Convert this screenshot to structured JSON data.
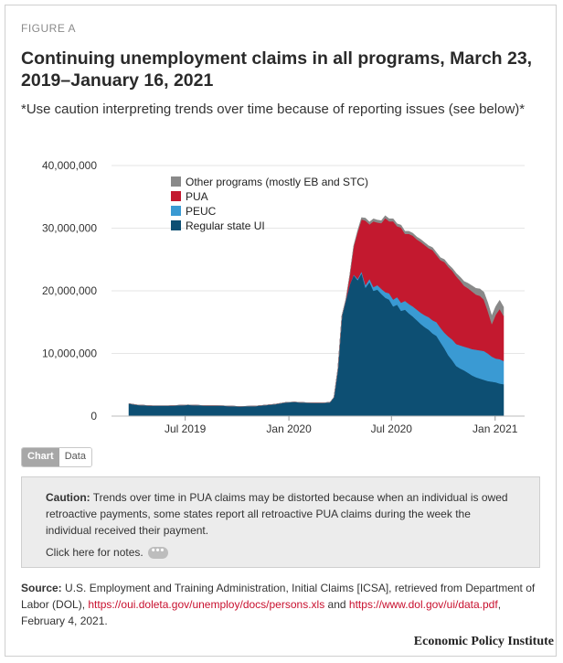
{
  "figure_label": "FIGURE A",
  "title": "Continuing unemployment claims in all programs, March 23, 2019–January 16, 2021",
  "subtitle": "*Use caution interpreting trends over time because of reporting issues (see below)*",
  "colors": {
    "regular": "#0d4f73",
    "peuc": "#3a9ad3",
    "pua": "#c3192f",
    "other": "#898989",
    "grid": "#e6e6e6"
  },
  "chart_data": {
    "type": "area",
    "stacked": true,
    "y_ticks": [
      "0",
      "10,000,000",
      "20,000,000",
      "30,000,000",
      "40,000,000"
    ],
    "ylim": [
      0,
      40000000
    ],
    "x_tick_labels": [
      "Jul 2019",
      "Jan 2020",
      "Jul 2020",
      "Jan 2021"
    ],
    "x_tick_dates": [
      "2019-07-01",
      "2020-01-01",
      "2020-07-01",
      "2021-01-01"
    ],
    "x_range": [
      "2019-03-23",
      "2021-01-16"
    ],
    "grid": true,
    "legend_placement": "top-left",
    "x": [
      "2019-03-23",
      "2019-04-06",
      "2019-05-04",
      "2019-06-01",
      "2019-07-06",
      "2019-08-03",
      "2019-09-07",
      "2019-10-05",
      "2019-11-02",
      "2019-12-07",
      "2019-12-28",
      "2020-01-11",
      "2020-02-01",
      "2020-02-29",
      "2020-03-14",
      "2020-03-21",
      "2020-03-28",
      "2020-04-04",
      "2020-04-11",
      "2020-04-18",
      "2020-04-25",
      "2020-05-02",
      "2020-05-09",
      "2020-05-16",
      "2020-05-23",
      "2020-05-30",
      "2020-06-06",
      "2020-06-13",
      "2020-06-20",
      "2020-06-27",
      "2020-07-04",
      "2020-07-11",
      "2020-07-18",
      "2020-07-25",
      "2020-08-01",
      "2020-08-08",
      "2020-08-15",
      "2020-08-22",
      "2020-08-29",
      "2020-09-05",
      "2020-09-12",
      "2020-09-19",
      "2020-09-26",
      "2020-10-03",
      "2020-10-10",
      "2020-10-17",
      "2020-10-24",
      "2020-10-31",
      "2020-11-07",
      "2020-11-14",
      "2020-11-21",
      "2020-11-28",
      "2020-12-05",
      "2020-12-12",
      "2020-12-19",
      "2020-12-26",
      "2021-01-02",
      "2021-01-09",
      "2021-01-16"
    ],
    "series": [
      {
        "name": "Regular state UI",
        "values": [
          2000000,
          1800000,
          1650000,
          1650000,
          1800000,
          1700000,
          1650000,
          1550000,
          1600000,
          1900000,
          2200000,
          2250000,
          2150000,
          2100000,
          2200000,
          3000000,
          7500000,
          16000000,
          18500000,
          21000000,
          22500000,
          21700000,
          22800000,
          20500000,
          21400000,
          20000000,
          20200000,
          19500000,
          18900000,
          18600000,
          17500000,
          17800000,
          16800000,
          17000000,
          16400000,
          15900000,
          15300000,
          14700000,
          14200000,
          13800000,
          13200000,
          12800000,
          11800000,
          10800000,
          9700000,
          8900000,
          8000000,
          7600000,
          7300000,
          6900000,
          6500000,
          6200000,
          6000000,
          5800000,
          5600000,
          5500000,
          5400000,
          5200000,
          5100000
        ]
      },
      {
        "name": "PEUC",
        "values": [
          0,
          0,
          0,
          0,
          0,
          0,
          0,
          0,
          0,
          0,
          0,
          0,
          0,
          0,
          0,
          0,
          0,
          0,
          0,
          0,
          100000,
          200000,
          300000,
          400000,
          500000,
          600000,
          700000,
          800000,
          900000,
          1000000,
          1100000,
          1200000,
          1300000,
          1400000,
          1500000,
          1600000,
          1700000,
          1800000,
          1900000,
          2000000,
          2100000,
          2200000,
          2300000,
          2500000,
          3000000,
          3300000,
          3500000,
          3700000,
          3800000,
          4000000,
          4200000,
          4400000,
          4500000,
          4600000,
          4400000,
          4000000,
          3800000,
          3900000,
          3700000
        ]
      },
      {
        "name": "PUA",
        "values": [
          0,
          0,
          0,
          0,
          0,
          0,
          0,
          0,
          0,
          0,
          0,
          0,
          0,
          0,
          0,
          0,
          0,
          0,
          100000,
          1500000,
          4500000,
          7500000,
          8300000,
          10300000,
          8700000,
          10500000,
          10000000,
          10500000,
          11800000,
          11500000,
          12500000,
          11300000,
          12000000,
          10700000,
          11200000,
          11300000,
          11200000,
          11300000,
          11200000,
          11000000,
          11200000,
          10700000,
          10800000,
          11300000,
          11100000,
          11000000,
          10800000,
          10300000,
          9700000,
          9500000,
          9200000,
          8800000,
          8700000,
          8200000,
          6800000,
          5200000,
          7000000,
          8000000,
          7200000
        ]
      },
      {
        "name": "Other programs (mostly EB and STC)",
        "values": [
          0,
          0,
          0,
          0,
          0,
          0,
          0,
          0,
          0,
          0,
          0,
          0,
          0,
          0,
          0,
          0,
          0,
          0,
          0,
          0,
          100000,
          200000,
          300000,
          400000,
          400000,
          400000,
          400000,
          400000,
          400000,
          400000,
          400000,
          400000,
          400000,
          400000,
          400000,
          400000,
          400000,
          400000,
          400000,
          400000,
          400000,
          400000,
          400000,
          400000,
          400000,
          400000,
          500000,
          600000,
          700000,
          800000,
          900000,
          1000000,
          1100000,
          1200000,
          1300000,
          1300000,
          1300000,
          1400000,
          1400000
        ]
      }
    ],
    "legend": [
      "Other programs (mostly EB and STC)",
      "PUA",
      "PEUC",
      "Regular state UI"
    ]
  },
  "toggle": {
    "chart": "Chart",
    "data": "Data"
  },
  "caution": {
    "label": "Caution:",
    "text": "Trends over time in PUA claims may be distorted because when an individual is owed retroactive payments, some states report all retroactive PUA claims during the week the individual received their payment.",
    "notes": "Click here for notes.",
    "dots": "•••"
  },
  "source": {
    "label": "Source:",
    "text1": "U.S. Employment and Training Administration, Initial Claims [ICSA], retrieved from Department of Labor (DOL),",
    "link1": "https://oui.doleta.gov/unemploy/docs/persons.xls",
    "and": "and",
    "link2": "https://www.dol.gov/ui/data.pdf",
    "text2": ", February 4, 2021."
  },
  "brand": "Economic Policy Institute"
}
